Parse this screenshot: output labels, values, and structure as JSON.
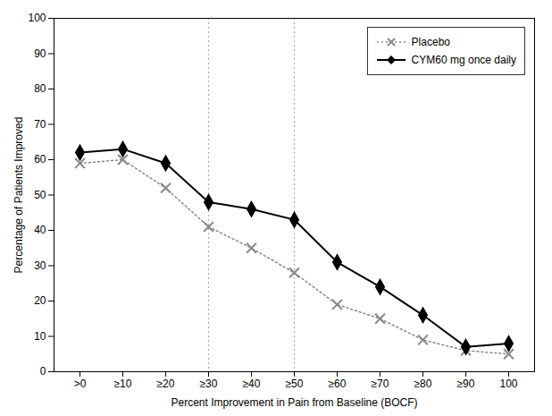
{
  "chart_data": {
    "type": "line",
    "categories": [
      ">0",
      "≥10",
      "≥20",
      "≥30",
      "≥40",
      "≥50",
      "≥60",
      "≥70",
      "≥80",
      "≥90",
      "100"
    ],
    "series": [
      {
        "name": "Placebo",
        "color": "#888888",
        "marker": "x",
        "line_style": "dotted",
        "values": [
          59,
          60,
          52,
          41,
          35,
          28,
          19,
          15,
          9,
          6,
          5
        ]
      },
      {
        "name": "CYM60 mg once daily",
        "color": "#000000",
        "marker": "diamond",
        "line_style": "solid",
        "values": [
          62,
          63,
          59,
          48,
          46,
          43,
          31,
          24,
          16,
          7,
          8
        ]
      }
    ],
    "vlines": {
      "x": [
        "≥30",
        "≥50"
      ],
      "color": "#aaaaaa",
      "line_style": "dotted"
    },
    "xlabel": "Percent Improvement in Pain from Baseline (BOCF)",
    "ylabel": "Percentage of Patients Improved",
    "ylim": [
      0,
      100
    ],
    "yticks": [
      0,
      10,
      20,
      30,
      40,
      50,
      60,
      70,
      80,
      90,
      100
    ],
    "grid": false,
    "legend": "upper right"
  }
}
